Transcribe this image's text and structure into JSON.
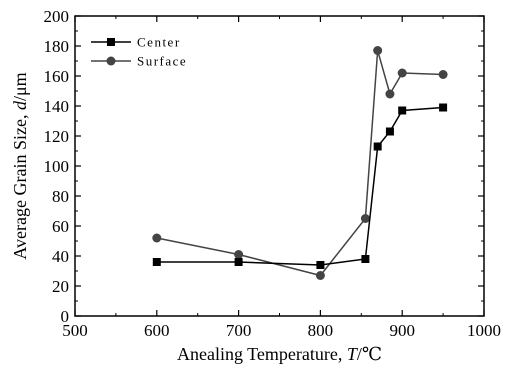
{
  "chart_data": {
    "type": "line",
    "xlabel": "Anealing Temperature, T/℃",
    "xlabel_prefix": "Anealing Temperature, ",
    "xlabel_var": "T",
    "xlabel_unit": "/℃",
    "ylabel": "Average Grain Size, d/μm",
    "ylabel_prefix": "Average Grain Size, ",
    "ylabel_var": "d",
    "ylabel_unit": "/μm",
    "xlim": [
      500,
      1000
    ],
    "ylim": [
      0,
      200
    ],
    "xticks": [
      "500",
      "600",
      "700",
      "800",
      "900",
      "1000"
    ],
    "yticks": [
      "0",
      "20",
      "40",
      "60",
      "80",
      "100",
      "120",
      "140",
      "160",
      "180",
      "200"
    ],
    "grid": false,
    "legend_position": "top-left",
    "series": [
      {
        "name": "Center",
        "marker": "square",
        "color": "#000000",
        "x": [
          600,
          700,
          800,
          855,
          870,
          885,
          900,
          950
        ],
        "y": [
          36,
          36,
          34,
          38,
          113,
          123,
          137,
          139
        ]
      },
      {
        "name": "Surface",
        "marker": "circle",
        "color": "#444444",
        "x": [
          600,
          700,
          800,
          855,
          870,
          885,
          900,
          950
        ],
        "y": [
          52,
          41,
          27,
          65,
          177,
          148,
          162,
          161
        ]
      }
    ]
  }
}
